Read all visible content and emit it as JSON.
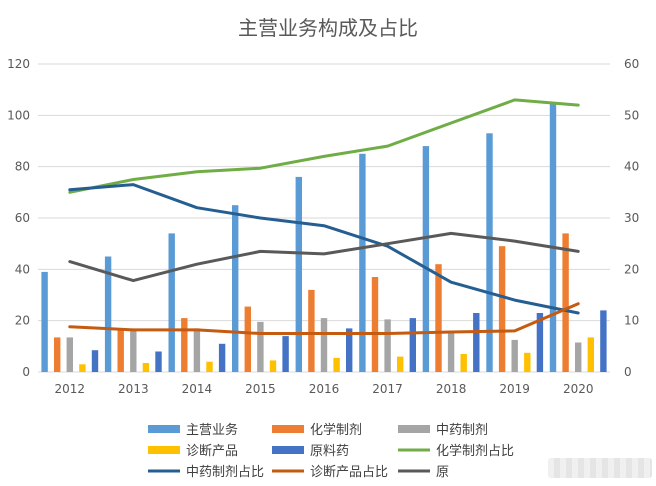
{
  "chart_data": {
    "type": "bar",
    "title": "主营业务构成及占比",
    "x": [
      "2012",
      "2013",
      "2014",
      "2015",
      "2016",
      "2017",
      "2018",
      "2019",
      "2020"
    ],
    "y_left": {
      "min": 0,
      "max": 120,
      "ticks": [
        0,
        20,
        40,
        60,
        80,
        100,
        120
      ]
    },
    "y_right": {
      "min": 0,
      "max": 60,
      "ticks": [
        0,
        10,
        20,
        30,
        40,
        50,
        60
      ]
    },
    "grid": true,
    "legend_position": "bottom",
    "series": [
      {
        "name": "主营业务",
        "kind": "bar",
        "axis": "left",
        "color": "#5B9BD5",
        "values": [
          39,
          45,
          54,
          65,
          76,
          85,
          88,
          93,
          105
        ]
      },
      {
        "name": "化学制剂",
        "kind": "bar",
        "axis": "left",
        "color": "#ED7D31",
        "values": [
          13.5,
          16.5,
          21,
          25.5,
          32,
          37,
          42,
          49,
          54
        ]
      },
      {
        "name": "中药制剂",
        "kind": "bar",
        "axis": "left",
        "color": "#A5A5A5",
        "values": [
          13.5,
          16.5,
          17,
          19.5,
          21,
          20.5,
          16,
          12.5,
          11.5
        ]
      },
      {
        "name": "诊断产品",
        "kind": "bar",
        "axis": "left",
        "color": "#FFC000",
        "values": [
          3,
          3.5,
          4,
          4.5,
          5.5,
          6,
          7,
          7.5,
          13.5
        ]
      },
      {
        "name": "原料药",
        "kind": "bar",
        "axis": "left",
        "color": "#4472C4",
        "values": [
          8.5,
          8,
          11,
          14,
          17,
          21,
          23,
          23,
          24
        ]
      },
      {
        "name": "化学制剂占比",
        "kind": "line",
        "axis": "right",
        "color": "#70AD47",
        "values": [
          35,
          37.5,
          39,
          39.7,
          42,
          44,
          48.5,
          53,
          52
        ]
      },
      {
        "name": "中药制剂占比",
        "kind": "line",
        "axis": "right",
        "color": "#255E91",
        "values": [
          35.5,
          36.5,
          32,
          30,
          28.5,
          24.5,
          17.5,
          14,
          11.5
        ]
      },
      {
        "name": "诊断产品占比",
        "kind": "line",
        "axis": "right",
        "color": "#C55A11",
        "values": [
          8.8,
          8.2,
          8.2,
          7.5,
          7.5,
          7.5,
          7.8,
          8,
          13.3
        ]
      },
      {
        "name": "原",
        "kind": "line",
        "axis": "right",
        "color": "#595959",
        "values": [
          21.5,
          17.8,
          21,
          23.5,
          23,
          25,
          27,
          25.5,
          23.5
        ]
      }
    ]
  }
}
